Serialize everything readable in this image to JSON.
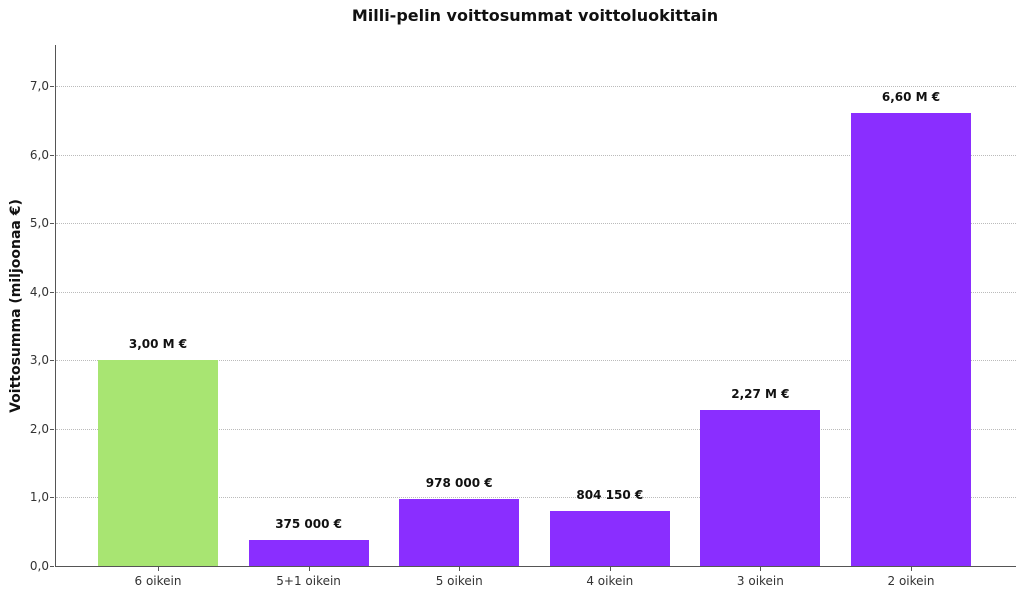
{
  "chart_data": {
    "type": "bar",
    "title": "Milli-pelin voittosummat voittoluokittain",
    "xlabel": "",
    "ylabel": "Voittosumma (miljoonaa €)",
    "ylim": [
      0,
      7.6
    ],
    "yticks": [
      0,
      1,
      2,
      3,
      4,
      5,
      6,
      7
    ],
    "ytick_labels": [
      "0,0",
      "1,0",
      "2,0",
      "3,0",
      "4,0",
      "5,0",
      "6,0",
      "7,0"
    ],
    "grid": {
      "axis": "y",
      "style": "dotted"
    },
    "categories": [
      "6 oikein",
      "5+1 oikein",
      "5 oikein",
      "4 oikein",
      "3 oikein",
      "2 oikein"
    ],
    "values": [
      3.0,
      0.375,
      0.978,
      0.80415,
      2.27,
      6.6
    ],
    "data_labels": [
      "3,00 M €",
      "375 000 €",
      "978 000 €",
      "804 150 €",
      "2,27 M €",
      "6,60 M €"
    ],
    "colors": [
      "#a8e572",
      "#8a2eff",
      "#8a2eff",
      "#8a2eff",
      "#8a2eff",
      "#8a2eff"
    ]
  }
}
